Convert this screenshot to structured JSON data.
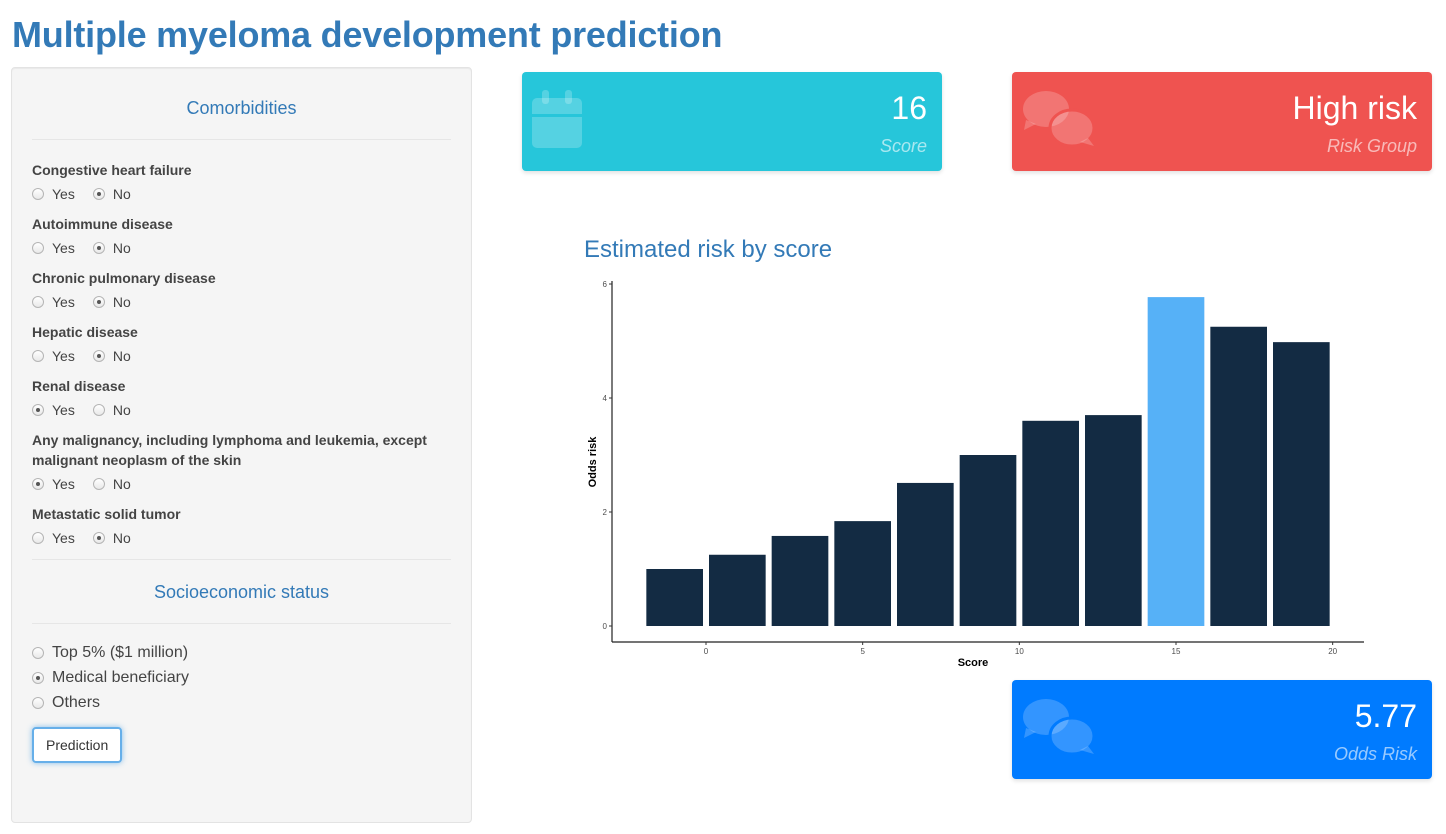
{
  "page": {
    "title": "Multiple myeloma development prediction"
  },
  "sidebar": {
    "comorbidities_title": "Comorbidities",
    "questions": [
      {
        "label": "Congestive heart failure",
        "options": [
          "Yes",
          "No"
        ],
        "selected": "No"
      },
      {
        "label": "Autoimmune disease",
        "options": [
          "Yes",
          "No"
        ],
        "selected": "No"
      },
      {
        "label": "Chronic pulmonary disease",
        "options": [
          "Yes",
          "No"
        ],
        "selected": "No"
      },
      {
        "label": "Hepatic disease",
        "options": [
          "Yes",
          "No"
        ],
        "selected": "No"
      },
      {
        "label": "Renal disease",
        "options": [
          "Yes",
          "No"
        ],
        "selected": "Yes"
      },
      {
        "label": "Any malignancy, including lymphoma and leukemia, except malignant neoplasm of the skin",
        "options": [
          "Yes",
          "No"
        ],
        "selected": "Yes"
      },
      {
        "label": "Metastatic solid tumor",
        "options": [
          "Yes",
          "No"
        ],
        "selected": "No"
      }
    ],
    "socio_title": "Socioeconomic status",
    "socio_options": [
      "Top 5% ($1 million)",
      "Medical beneficiary",
      "Others"
    ],
    "socio_selected": "Medical beneficiary",
    "prediction_button": "Prediction"
  },
  "boxes": {
    "score": {
      "value": "16",
      "subtitle": "Score",
      "icon": "calendar-icon",
      "color": "#26c6da"
    },
    "risk_group": {
      "value": "High risk",
      "subtitle": "Risk Group",
      "icon": "comments-icon",
      "color": "#ef5350"
    },
    "odds": {
      "value": "5.77",
      "subtitle": "Odds Risk",
      "icon": "comments-icon",
      "color": "#007bff"
    }
  },
  "chart_data": {
    "type": "bar",
    "title": "Estimated risk by score",
    "xlabel": "Score",
    "ylabel": "Odds risk",
    "x": [
      -1,
      1,
      3,
      5,
      7,
      9,
      11,
      13,
      15,
      17,
      19
    ],
    "values": [
      1.0,
      1.25,
      1.58,
      1.84,
      2.51,
      3.0,
      3.6,
      3.7,
      5.77,
      5.25,
      4.98
    ],
    "highlight_index": 8,
    "highlight_color": "#56b1f7",
    "bar_color": "#132b43",
    "xticks": [
      0,
      5,
      10,
      15,
      20
    ],
    "yticks": [
      0,
      2,
      4,
      6
    ],
    "xlim": [
      -3,
      21
    ],
    "ylim": [
      0,
      6
    ],
    "grid": false,
    "legend": "none"
  }
}
